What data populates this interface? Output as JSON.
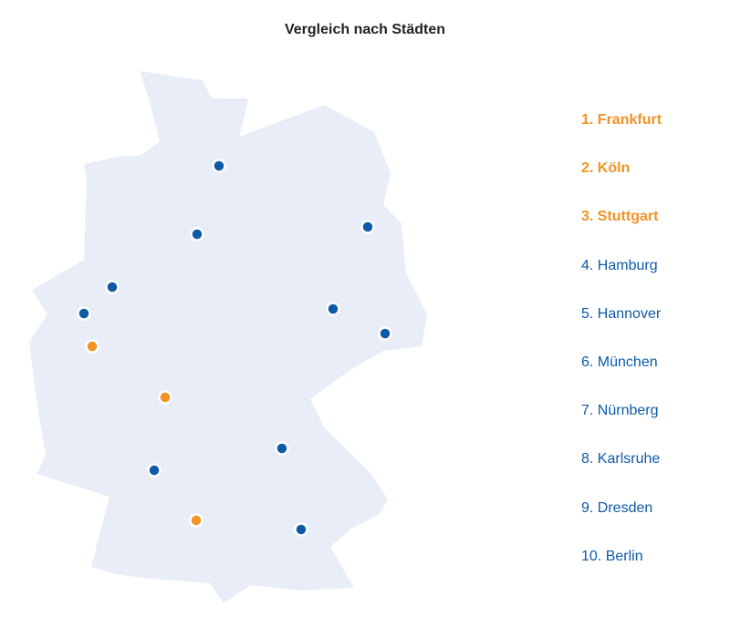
{
  "title": "Vergleich nach Städten",
  "cities": [
    {
      "label": "1. Frankfurt",
      "color": "#f39325",
      "bold": true
    },
    {
      "label": "2. Köln",
      "color": "#f39325",
      "bold": true
    },
    {
      "label": "3. Stuttgart",
      "color": "#f39325",
      "bold": true
    },
    {
      "label": "4. Hamburg",
      "color": "#0e5aa7",
      "bold": false
    },
    {
      "label": "5. Hannover",
      "color": "#0e5aa7",
      "bold": false
    },
    {
      "label": "6. München",
      "color": "#0e5aa7",
      "bold": false
    },
    {
      "label": "7. Nürnberg",
      "color": "#0e5aa7",
      "bold": false
    },
    {
      "label": "8. Karlsruhe",
      "color": "#0e5aa7",
      "bold": false
    },
    {
      "label": "9. Dresden",
      "color": "#0e5aa7",
      "bold": false
    },
    {
      "label": "10. Berlin",
      "color": "#0e5aa7",
      "bold": false
    }
  ]
}
